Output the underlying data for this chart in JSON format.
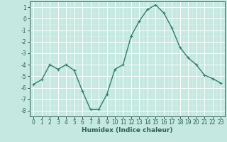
{
  "x": [
    0,
    1,
    2,
    3,
    4,
    5,
    6,
    7,
    8,
    9,
    10,
    11,
    12,
    13,
    14,
    15,
    16,
    17,
    18,
    19,
    20,
    21,
    22,
    23
  ],
  "y": [
    -5.7,
    -5.3,
    -4.0,
    -4.4,
    -4.0,
    -4.5,
    -6.3,
    -7.9,
    -7.9,
    -6.6,
    -4.4,
    -4.0,
    -1.5,
    -0.2,
    0.8,
    1.2,
    0.5,
    -0.8,
    -2.5,
    -3.4,
    -4.0,
    -4.9,
    -5.2,
    -5.6
  ],
  "line_color": "#2e7d6e",
  "marker": "+",
  "marker_size": 3,
  "bg_color": "#c5e8e0",
  "grid_major_color": "#ffffff",
  "grid_minor_color": "#daf0eb",
  "xlabel": "Humidex (Indice chaleur)",
  "xlim": [
    -0.5,
    23.5
  ],
  "ylim": [
    -8.5,
    1.5
  ],
  "yticks": [
    1,
    0,
    -1,
    -2,
    -3,
    -4,
    -5,
    -6,
    -7,
    -8
  ],
  "xticks": [
    0,
    1,
    2,
    3,
    4,
    5,
    6,
    7,
    8,
    9,
    10,
    11,
    12,
    13,
    14,
    15,
    16,
    17,
    18,
    19,
    20,
    21,
    22,
    23
  ],
  "tick_fontsize": 5.5,
  "xlabel_fontsize": 6.5,
  "line_width": 1.0,
  "tick_color": "#2e6055",
  "spine_color": "#2e6055"
}
